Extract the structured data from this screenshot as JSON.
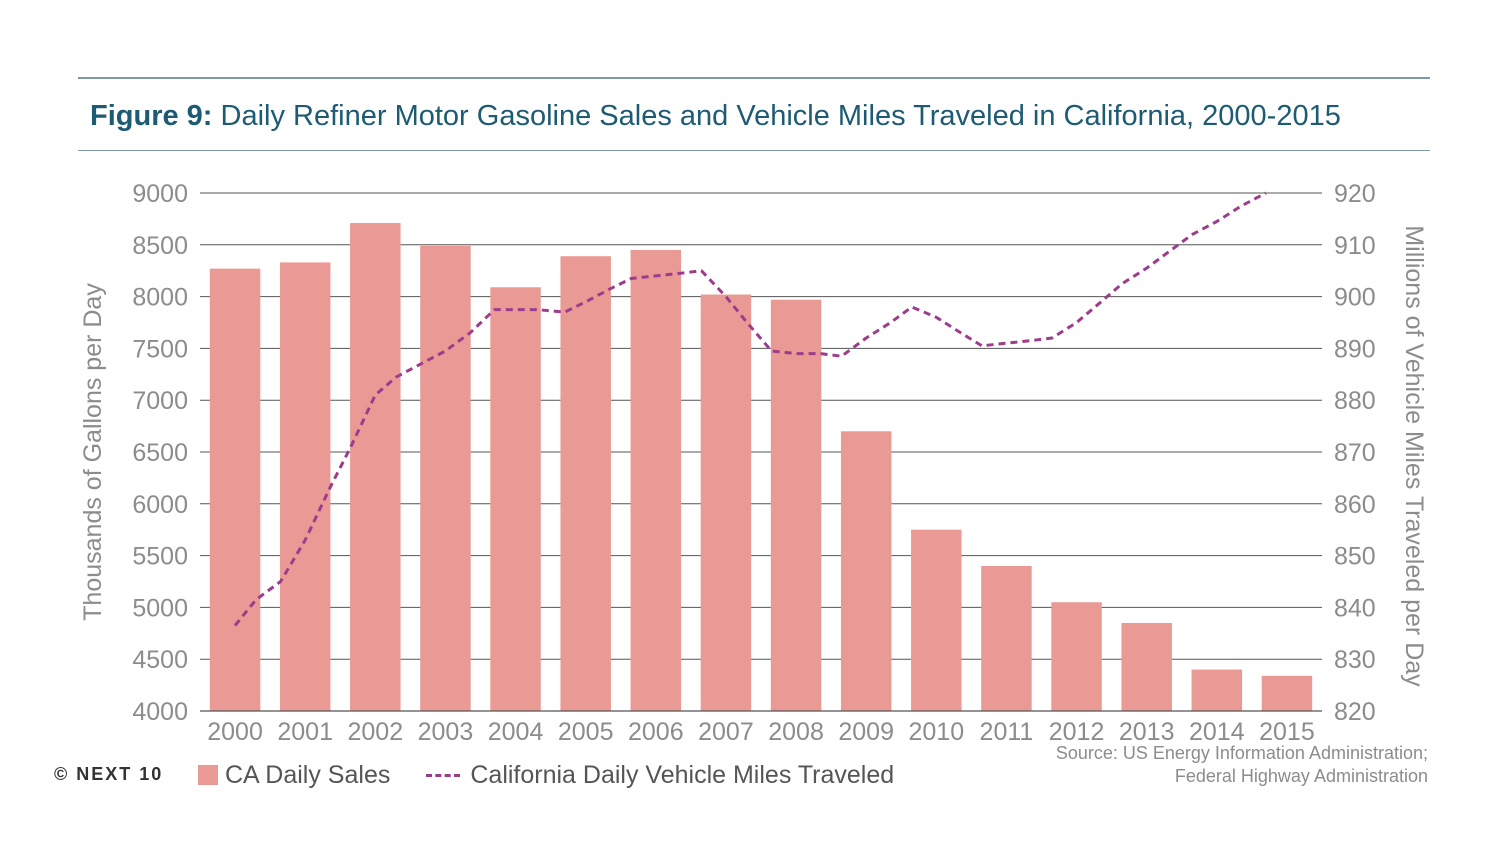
{
  "title": {
    "label": "Figure 9:",
    "text": "Daily Refiner Motor Gasoline Sales and Vehicle Miles Traveled in California, 2000-2015"
  },
  "copyright": "© NEXT 10",
  "source": {
    "line1": "Source: US Energy Information Administration;",
    "line2": "Federal Highway Administration"
  },
  "colors": {
    "bar": "#ea9a95",
    "line": "#9c3d8c",
    "title": "#1d5b73",
    "grid": "#555555",
    "axis_text": "#8c8c8c"
  },
  "chart_data": {
    "type": "bar",
    "categories": [
      "2000",
      "2001",
      "2002",
      "2003",
      "2004",
      "2005",
      "2006",
      "2007",
      "2008",
      "2009",
      "2010",
      "2011",
      "2012",
      "2013",
      "2014",
      "2015"
    ],
    "series": [
      {
        "name": "CA Daily Sales",
        "type": "bar",
        "axis": "left",
        "values": [
          8270,
          8330,
          8710,
          8490,
          8090,
          8390,
          8450,
          8020,
          7970,
          6700,
          5750,
          5400,
          5050,
          4850,
          4400,
          4340
        ]
      },
      {
        "name": "California Daily Vehicle Miles Traveled",
        "type": "line",
        "style": "dashed",
        "axis": "right",
        "values": [
          836.5,
          853.0,
          881.0,
          887.5,
          897.5,
          897.0,
          904.0,
          905.0,
          889.5,
          888.5,
          898.0,
          890.5,
          892.0,
          902.5,
          912.0,
          920.0
        ],
        "points": [
          [
            0.0,
            836.5
          ],
          [
            0.3,
            841.5
          ],
          [
            0.65,
            845.0
          ],
          [
            1.0,
            853.0
          ],
          [
            1.35,
            863.0
          ],
          [
            1.65,
            871.0
          ],
          [
            2.0,
            881.0
          ],
          [
            2.3,
            884.5
          ],
          [
            2.65,
            887.0
          ],
          [
            3.0,
            889.5
          ],
          [
            3.35,
            893.0
          ],
          [
            3.7,
            897.5
          ],
          [
            4.0,
            897.5
          ],
          [
            4.3,
            897.5
          ],
          [
            4.7,
            897.0
          ],
          [
            5.0,
            899.0
          ],
          [
            5.35,
            901.5
          ],
          [
            5.65,
            903.5
          ],
          [
            6.0,
            904.0
          ],
          [
            6.35,
            904.5
          ],
          [
            6.65,
            905.0
          ],
          [
            7.0,
            900.0
          ],
          [
            7.3,
            895.0
          ],
          [
            7.65,
            889.5
          ],
          [
            8.0,
            889.0
          ],
          [
            8.35,
            889.0
          ],
          [
            8.65,
            888.5
          ],
          [
            9.0,
            892.0
          ],
          [
            9.35,
            895.0
          ],
          [
            9.65,
            898.0
          ],
          [
            10.0,
            896.0
          ],
          [
            10.35,
            893.0
          ],
          [
            10.65,
            890.5
          ],
          [
            11.0,
            891.0
          ],
          [
            11.35,
            891.5
          ],
          [
            11.65,
            892.0
          ],
          [
            12.0,
            895.0
          ],
          [
            12.35,
            899.0
          ],
          [
            12.65,
            902.5
          ],
          [
            13.0,
            905.5
          ],
          [
            13.35,
            909.0
          ],
          [
            13.65,
            912.0
          ],
          [
            14.0,
            914.5
          ],
          [
            14.35,
            917.5
          ],
          [
            14.7,
            920.0
          ]
        ]
      }
    ],
    "y_left": {
      "label": "Thousands of Gallons per Day",
      "min": 4000,
      "max": 9000,
      "step": 500
    },
    "y_right": {
      "label": "Millions of Vehicle Miles Traveled per Day",
      "min": 820,
      "max": 920,
      "step": 10
    },
    "grid": true,
    "legend": "bottom-left"
  }
}
